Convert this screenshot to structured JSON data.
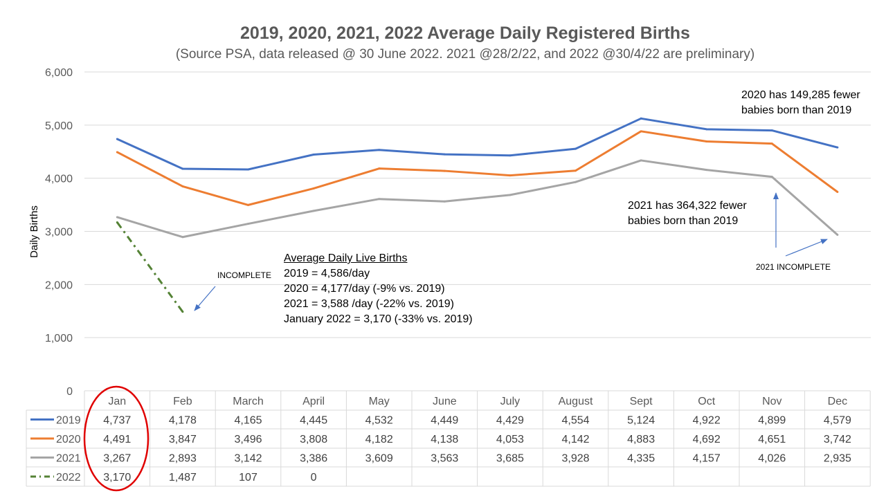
{
  "title": "2019, 2020, 2021, 2022 Average Daily Registered Births",
  "subtitle": "(Source PSA, data released @ 30 June 2022.  2021 @28/2/22, and 2022 @30/4/22 are preliminary)",
  "chart_data": {
    "type": "line",
    "categories": [
      "Jan",
      "Feb",
      "March",
      "April",
      "May",
      "June",
      "July",
      "August",
      "Sept",
      "Oct",
      "Nov",
      "Dec"
    ],
    "ylabel": "Daily Births",
    "ylim": [
      0,
      6000
    ],
    "yticks": [
      "0",
      "1,000",
      "2,000",
      "3,000",
      "4,000",
      "5,000",
      "6,000"
    ],
    "grid": true,
    "legend": "data-table",
    "series": [
      {
        "name": "2019",
        "color": "#4472C4",
        "dash": "solid",
        "values": [
          4737,
          4178,
          4165,
          4445,
          4532,
          4449,
          4429,
          4554,
          5124,
          4922,
          4899,
          4579
        ],
        "labels": [
          "4,737",
          "4,178",
          "4,165",
          "4,445",
          "4,532",
          "4,449",
          "4,429",
          "4,554",
          "5,124",
          "4,922",
          "4,899",
          "4,579"
        ]
      },
      {
        "name": "2020",
        "color": "#ED7D31",
        "dash": "solid",
        "values": [
          4491,
          3847,
          3496,
          3808,
          4182,
          4138,
          4053,
          4142,
          4883,
          4692,
          4651,
          3742
        ],
        "labels": [
          "4,491",
          "3,847",
          "3,496",
          "3,808",
          "4,182",
          "4,138",
          "4,053",
          "4,142",
          "4,883",
          "4,692",
          "4,651",
          "3,742"
        ]
      },
      {
        "name": "2021",
        "color": "#A5A5A5",
        "dash": "solid",
        "values": [
          3267,
          2893,
          3142,
          3386,
          3609,
          3563,
          3685,
          3928,
          4335,
          4157,
          4026,
          2935
        ],
        "labels": [
          "3,267",
          "2,893",
          "3,142",
          "3,386",
          "3,609",
          "3,563",
          "3,685",
          "3,928",
          "4,335",
          "4,157",
          "4,026",
          "2,935"
        ]
      },
      {
        "name": "2022",
        "color": "#548235",
        "dash": "dashdot",
        "values": [
          3170,
          1487,
          107,
          0,
          null,
          null,
          null,
          null,
          null,
          null,
          null,
          null
        ],
        "labels": [
          "3,170",
          "1,487",
          "107",
          "0",
          "",
          "",
          "",
          "",
          "",
          "",
          "",
          ""
        ]
      }
    ]
  },
  "annotations": {
    "incomplete_2022": "INCOMPLETE",
    "incomplete_2021": "2021  INCOMPLETE",
    "fewer_2020_line1": "2020 has 149,285 fewer",
    "fewer_2020_line2": "babies born than 2019",
    "fewer_2021_line1": "2021 has 364,322 fewer",
    "fewer_2021_line2": "babies born than 2019",
    "avg_heading": "Average Daily Live Births",
    "avg_2019": "2019 = 4,586/day",
    "avg_2020": "2020 = 4,177/day (-9% vs. 2019)",
    "avg_2021": "2021 = 3,588 /day (-22% vs. 2019)",
    "avg_2022": "January 2022 = 3,170 (-33% vs. 2019)"
  }
}
